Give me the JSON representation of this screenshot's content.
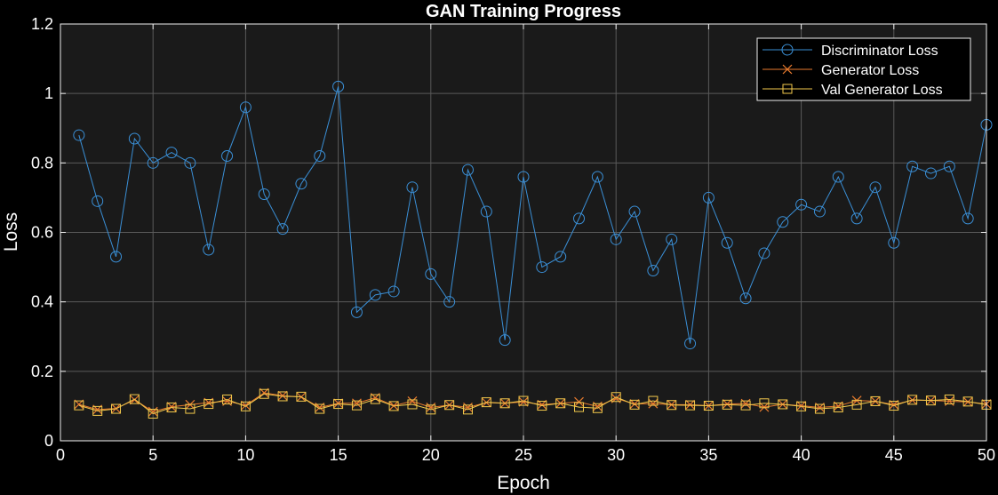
{
  "chart_data": {
    "type": "line",
    "title": "GAN Training Progress",
    "xlabel": "Epoch",
    "ylabel": "Loss",
    "xlim": [
      0,
      50
    ],
    "ylim": [
      0,
      1.2
    ],
    "xticks": [
      "0",
      "5",
      "10",
      "15",
      "20",
      "25",
      "30",
      "35",
      "40",
      "45",
      "50"
    ],
    "yticks": [
      "0",
      "0.2",
      "0.4",
      "0.6",
      "0.8",
      "1",
      "1.2"
    ],
    "grid": true,
    "legend_position": "top-right",
    "background": "#1a1a1a",
    "x": [
      1,
      2,
      3,
      4,
      5,
      6,
      7,
      8,
      9,
      10,
      11,
      12,
      13,
      14,
      15,
      16,
      17,
      18,
      19,
      20,
      21,
      22,
      23,
      24,
      25,
      26,
      27,
      28,
      29,
      30,
      31,
      32,
      33,
      34,
      35,
      36,
      37,
      38,
      39,
      40,
      41,
      42,
      43,
      44,
      45,
      46,
      47,
      48,
      49,
      50
    ],
    "series": [
      {
        "name": "Discriminator Loss",
        "marker": "circle",
        "color": "#3a8fd6",
        "values": [
          0.88,
          0.69,
          0.53,
          0.87,
          0.8,
          0.83,
          0.8,
          0.55,
          0.82,
          0.96,
          0.71,
          0.61,
          0.74,
          0.82,
          1.02,
          0.37,
          0.42,
          0.43,
          0.73,
          0.48,
          0.4,
          0.78,
          0.66,
          0.29,
          0.76,
          0.5,
          0.53,
          0.64,
          0.76,
          0.58,
          0.66,
          0.49,
          0.58,
          0.28,
          0.7,
          0.57,
          0.41,
          0.54,
          0.63,
          0.68,
          0.66,
          0.76,
          0.64,
          0.73,
          0.57,
          0.79,
          0.77,
          0.79,
          0.64,
          0.91
        ]
      },
      {
        "name": "Generator Loss",
        "marker": "x",
        "color": "#e87a2e",
        "values": [
          0.105,
          0.09,
          0.093,
          0.118,
          0.084,
          0.098,
          0.104,
          0.11,
          0.114,
          0.102,
          0.138,
          0.13,
          0.126,
          0.096,
          0.108,
          0.108,
          0.124,
          0.101,
          0.114,
          0.096,
          0.103,
          0.096,
          0.11,
          0.108,
          0.112,
          0.104,
          0.108,
          0.112,
          0.099,
          0.122,
          0.106,
          0.107,
          0.104,
          0.104,
          0.101,
          0.106,
          0.107,
          0.097,
          0.105,
          0.101,
          0.096,
          0.1,
          0.116,
          0.114,
          0.104,
          0.117,
          0.116,
          0.114,
          0.112,
          0.106
        ]
      },
      {
        "name": "Val Generator Loss",
        "marker": "square",
        "color": "#f2c94c",
        "values": [
          0.102,
          0.086,
          0.092,
          0.12,
          0.078,
          0.096,
          0.092,
          0.106,
          0.119,
          0.099,
          0.135,
          0.128,
          0.127,
          0.092,
          0.106,
          0.102,
          0.12,
          0.1,
          0.105,
          0.09,
          0.103,
          0.09,
          0.111,
          0.108,
          0.115,
          0.101,
          0.108,
          0.097,
          0.094,
          0.126,
          0.104,
          0.115,
          0.103,
          0.102,
          0.101,
          0.104,
          0.102,
          0.108,
          0.105,
          0.099,
          0.092,
          0.096,
          0.104,
          0.114,
          0.101,
          0.118,
          0.116,
          0.119,
          0.113,
          0.104
        ]
      }
    ]
  }
}
